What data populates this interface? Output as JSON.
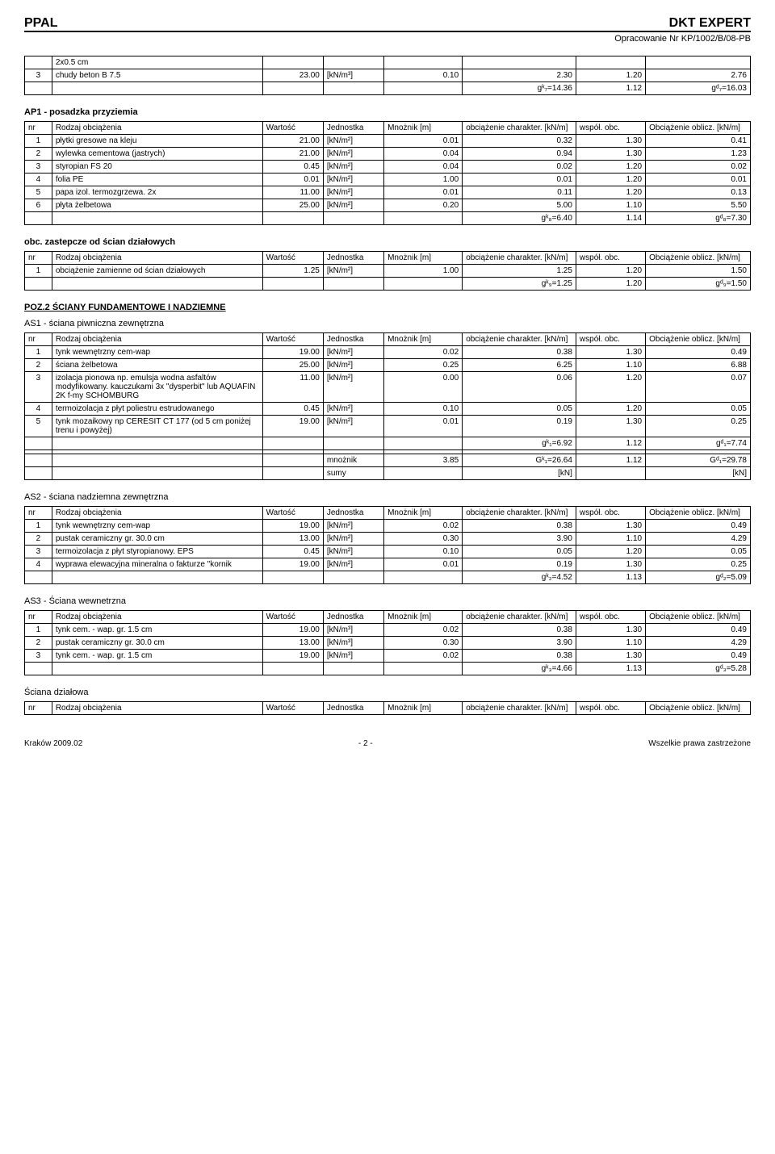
{
  "header": {
    "left": "PPAL",
    "right": "DKT EXPERT",
    "sub": "Opracowanie Nr KP/1002/B/08-PB"
  },
  "colHeaders": {
    "nr": "nr",
    "name": "Rodzaj obciążenia",
    "val": "Wartość",
    "unit": "Jednostka",
    "mn": "Mnożnik [m]",
    "char": "obciążenie charakter. [kN/m]",
    "wsp": "współ. obc.",
    "obc": "Obciążenie oblicz. [kN/m]"
  },
  "t0": {
    "rows": [
      [
        "",
        "2x0.5 cm",
        "",
        "",
        "",
        "",
        "",
        ""
      ],
      [
        "3",
        "chudy beton B 7.5",
        "23.00",
        "[kN/m³]",
        "0.10",
        "2.30",
        "1.20",
        "2.76"
      ],
      [
        "",
        "",
        "",
        "",
        "",
        "gᵏ₇=14.36",
        "1.12",
        "gᵈ₇=16.03"
      ]
    ]
  },
  "s1": {
    "title": "AP1 - posadzka przyziemia",
    "rows": [
      [
        "1",
        "płytki gresowe na kleju",
        "21.00",
        "[kN/m²]",
        "0.01",
        "0.32",
        "1.30",
        "0.41"
      ],
      [
        "2",
        "wylewka cementowa (jastrych)",
        "21.00",
        "[kN/m²]",
        "0.04",
        "0.94",
        "1.30",
        "1.23"
      ],
      [
        "3",
        "styropian FS 20",
        "0.45",
        "[kN/m²]",
        "0.04",
        "0.02",
        "1.20",
        "0.02"
      ],
      [
        "4",
        "folia PE",
        "0.01",
        "[kN/m²]",
        "1.00",
        "0.01",
        "1.20",
        "0.01"
      ],
      [
        "5",
        "papa izol. termozgrzewa. 2x",
        "11.00",
        "[kN/m²]",
        "0.01",
        "0.11",
        "1.20",
        "0.13"
      ],
      [
        "6",
        "płyta żelbetowa",
        "25.00",
        "[kN/m²]",
        "0.20",
        "5.00",
        "1.10",
        "5.50"
      ],
      [
        "",
        "",
        "",
        "",
        "",
        "gᵏ₈=6.40",
        "1.14",
        "gᵈ₈=7.30"
      ]
    ]
  },
  "s2": {
    "title": "obc. zastepcze od ścian działowych",
    "rows": [
      [
        "1",
        "obciążenie zamienne od ścian działowych",
        "1.25",
        "[kN/m²]",
        "1.00",
        "1.25",
        "1.20",
        "1.50"
      ],
      [
        "",
        "",
        "",
        "",
        "",
        "gᵏ₉=1.25",
        "1.20",
        "gᵈ₉=1.50"
      ]
    ]
  },
  "poz2": {
    "title": "POZ.2 ŚCIANY FUNDAMENTOWE I NADZIEMNE"
  },
  "s3": {
    "title": "AS1 - ściana piwniczna zewnętrzna",
    "rows": [
      [
        "1",
        "tynk wewnętrzny cem-wap",
        "19.00",
        "[kN/m²]",
        "0.02",
        "0.38",
        "1.30",
        "0.49"
      ],
      [
        "2",
        "ściana żelbetowa",
        "25.00",
        "[kN/m²]",
        "0.25",
        "6.25",
        "1.10",
        "6.88"
      ],
      [
        "3",
        "izolacja pionowa np. emulsja wodna asfaltów modyfikowany. kauczukami 3x \"dysperbit\" lub AQUAFIN 2K f-my SCHOMBURG",
        "11.00",
        "[kN/m²]",
        "0.00",
        "0.06",
        "1.20",
        "0.07"
      ],
      [
        "4",
        "termoizolacja z płyt poliestru estrudowanego",
        "0.45",
        "[kN/m²]",
        "0.10",
        "0.05",
        "1.20",
        "0.05"
      ],
      [
        "5",
        "tynk mozaikowy np CERESIT CT 177 (od 5 cm poniżej trenu i powyżej)",
        "19.00",
        "[kN/m²]",
        "0.01",
        "0.19",
        "1.30",
        "0.25"
      ],
      [
        "",
        "",
        "",
        "",
        "",
        "gᵏ₁=6.92",
        "1.12",
        "gᵈ₁=7.74"
      ],
      [
        "",
        "",
        "",
        "",
        "",
        "",
        "",
        ""
      ],
      [
        "",
        "",
        "",
        "mnożnik",
        "3.85",
        "Gᵏ₁=26.64",
        "1.12",
        "Gᵈ₁=29.78"
      ],
      [
        "",
        "",
        "",
        "sumy",
        "",
        "[kN]",
        "",
        "[kN]"
      ]
    ]
  },
  "s4": {
    "title": "AS2 - ściana nadziemna zewnętrzna",
    "rows": [
      [
        "1",
        "tynk wewnętrzny cem-wap",
        "19.00",
        "[kN/m²]",
        "0.02",
        "0.38",
        "1.30",
        "0.49"
      ],
      [
        "2",
        "pustak ceramiczny gr. 30.0 cm",
        "13.00",
        "[kN/m²]",
        "0.30",
        "3.90",
        "1.10",
        "4.29"
      ],
      [
        "3",
        "termoizolacja z płyt styropianowy. EPS",
        "0.45",
        "[kN/m²]",
        "0.10",
        "0.05",
        "1.20",
        "0.05"
      ],
      [
        "4",
        "wyprawa elewacyjna mineralna o fakturze \"kornik",
        "19.00",
        "[kN/m²]",
        "0.01",
        "0.19",
        "1.30",
        "0.25"
      ],
      [
        "",
        "",
        "",
        "",
        "",
        "gᵏ₂=4.52",
        "1.13",
        "gᵈ₂=5.09"
      ]
    ]
  },
  "s5": {
    "title": "AS3 - Ściana wewnetrzna",
    "rows": [
      [
        "1",
        "tynk cem. - wap. gr. 1.5 cm",
        "19.00",
        "[kN/m³]",
        "0.02",
        "0.38",
        "1.30",
        "0.49"
      ],
      [
        "2",
        "pustak ceramiczny gr. 30.0 cm",
        "13.00",
        "[kN/m³]",
        "0.30",
        "3.90",
        "1.10",
        "4.29"
      ],
      [
        "3",
        "tynk cem. - wap. gr. 1.5 cm",
        "19.00",
        "[kN/m³]",
        "0.02",
        "0.38",
        "1.30",
        "0.49"
      ],
      [
        "",
        "",
        "",
        "",
        "",
        "gᵏ₃=4.66",
        "1.13",
        "gᵈ₃=5.28"
      ]
    ]
  },
  "s6": {
    "title": "Ściana działowa"
  },
  "footer": {
    "left": "Kraków 2009.02",
    "center": "- 2 -",
    "right": "Wszelkie prawa zastrzeżone"
  }
}
